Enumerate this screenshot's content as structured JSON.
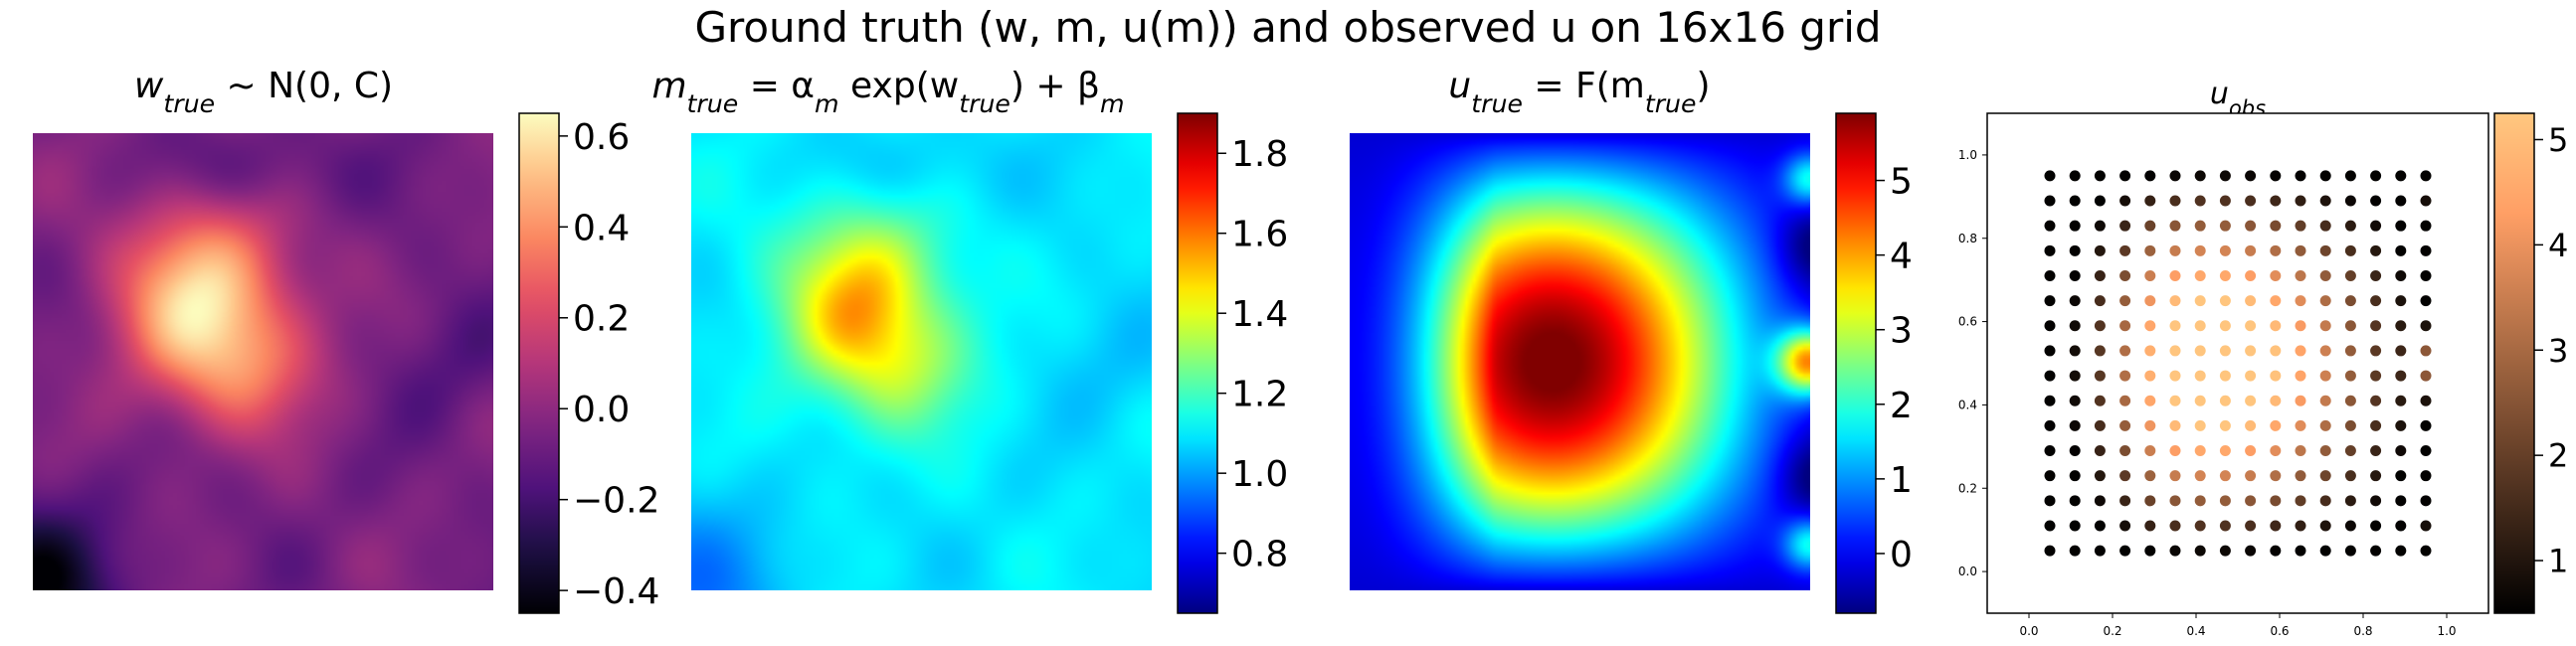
{
  "figure": {
    "suptitle": "Ground truth (w, m, u(m)) and observed u on 16x16 grid"
  },
  "chart_data": [
    {
      "type": "heatmap",
      "title": "w_true ~ N(0, C)",
      "title_parts": [
        "w",
        "true",
        " ~ N(0, C)"
      ],
      "colormap": "magma",
      "colorbar": {
        "min": -0.45,
        "max": 0.65,
        "ticks": [
          -0.4,
          -0.2,
          0.0,
          0.2,
          0.4,
          0.6
        ],
        "tick_labels": [
          "−0.4",
          "−0.2",
          "0.0",
          "0.2",
          "0.4",
          "0.6"
        ]
      },
      "field": "gaussian random field with a bright blob centred near (0.38, 0.65) and a dark corner at the lower left"
    },
    {
      "type": "heatmap",
      "title": "m_true = α_m exp(w_true) + β_m",
      "title_parts": [
        "m",
        "true",
        " = α",
        "m",
        " exp(w",
        "true",
        ") + β",
        "m"
      ],
      "colormap": "jet",
      "colorbar": {
        "min": 0.65,
        "max": 1.9,
        "ticks": [
          0.8,
          1.0,
          1.2,
          1.4,
          1.6,
          1.8
        ],
        "tick_labels": [
          "0.8",
          "1.0",
          "1.2",
          "1.4",
          "1.6",
          "1.8"
        ]
      }
    },
    {
      "type": "heatmap",
      "title": "u_true = F(m_true)",
      "title_parts": [
        "u",
        "true",
        " = F(m",
        "true",
        ")"
      ],
      "colormap": "jet",
      "colorbar": {
        "min": -0.8,
        "max": 5.9,
        "ticks": [
          0,
          1,
          2,
          3,
          4,
          5
        ],
        "tick_labels": [
          "0",
          "1",
          "2",
          "3",
          "4",
          "5"
        ]
      }
    },
    {
      "type": "scatter",
      "title": "u_obs",
      "title_parts": [
        "u",
        "obs"
      ],
      "colormap": "copper",
      "grid_size": 16,
      "x_range": [
        0.05,
        0.95
      ],
      "y_range": [
        0.05,
        0.95
      ],
      "xlim": [
        -0.1,
        1.1
      ],
      "ylim": [
        -0.1,
        1.1
      ],
      "xticks": [
        "0.0",
        "0.2",
        "0.4",
        "0.6",
        "0.8",
        "1.0"
      ],
      "yticks": [
        "0.0",
        "0.2",
        "0.4",
        "0.6",
        "0.8",
        "1.0"
      ],
      "colorbar": {
        "min": 0.5,
        "max": 5.25,
        "ticks": [
          1,
          2,
          3,
          4,
          5
        ],
        "tick_labels": [
          "1",
          "2",
          "3",
          "4",
          "5"
        ]
      }
    }
  ]
}
